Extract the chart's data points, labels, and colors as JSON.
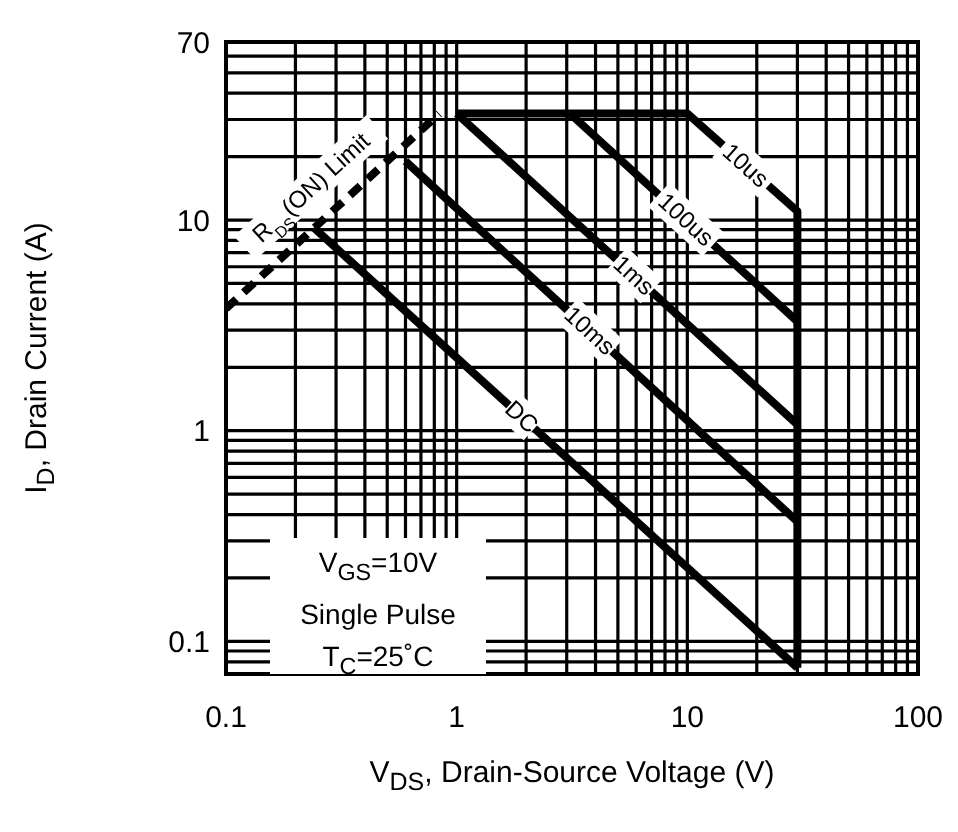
{
  "chart_data": {
    "type": "line",
    "xlabel": "V$_{DS}$, Drain-Source Voltage (V)",
    "ylabel": "I$_{D}$, Drain Current (A)",
    "log": "xy",
    "grid": true,
    "marker": "none",
    "xlim": [
      0.1,
      100
    ],
    "ylim": [
      0.07,
      70
    ],
    "xticks": [
      0.1,
      {
        "value": 0.2,
        "label": null
      },
      {
        "value": 0.3,
        "label": null
      },
      {
        "value": 0.4,
        "label": null
      },
      {
        "value": 0.5,
        "label": null
      },
      {
        "value": 0.6,
        "label": null
      },
      {
        "value": 0.7,
        "label": null
      },
      {
        "value": 0.8,
        "label": null
      },
      {
        "value": 0.9,
        "label": null
      },
      1,
      {
        "value": 2,
        "label": null
      },
      {
        "value": 3,
        "label": null
      },
      {
        "value": 4,
        "label": null
      },
      {
        "value": 5,
        "label": null
      },
      {
        "value": 6,
        "label": null
      },
      {
        "value": 7,
        "label": null
      },
      {
        "value": 8,
        "label": null
      },
      {
        "value": 9,
        "label": null
      },
      10,
      {
        "value": 20,
        "label": null
      },
      {
        "value": 30,
        "label": null
      },
      {
        "value": 40,
        "label": null
      },
      {
        "value": 50,
        "label": null
      },
      {
        "value": 60,
        "label": null
      },
      {
        "value": 70,
        "label": null
      },
      {
        "value": 80,
        "label": null
      },
      {
        "value": 90,
        "label": null
      },
      100
    ],
    "yticks": [
      {
        "value": 0.08,
        "label": null
      },
      {
        "value": 0.09,
        "label": null
      },
      0.1,
      {
        "value": 0.2,
        "label": null
      },
      {
        "value": 0.3,
        "label": null
      },
      {
        "value": 0.4,
        "label": null
      },
      {
        "value": 0.5,
        "label": null
      },
      {
        "value": 0.6,
        "label": null
      },
      {
        "value": 0.7,
        "label": null
      },
      {
        "value": 0.8,
        "label": null
      },
      {
        "value": 0.9,
        "label": null
      },
      1,
      {
        "value": 2,
        "label": null
      },
      {
        "value": 3,
        "label": null
      },
      {
        "value": 4,
        "label": null
      },
      {
        "value": 5,
        "label": null
      },
      {
        "value": 6,
        "label": null
      },
      {
        "value": 7,
        "label": null
      },
      {
        "value": 8,
        "label": null
      },
      {
        "value": 9,
        "label": null
      },
      10,
      {
        "value": 20,
        "label": null
      },
      {
        "value": 30,
        "label": null
      },
      {
        "value": 40,
        "label": null
      },
      {
        "value": 50,
        "label": null
      },
      {
        "value": 60,
        "label": null
      },
      70
    ],
    "series": [
      {
        "name": "R$_{DS}$(ON) Limit",
        "color": "#000000",
        "line_style": "dashed",
        "x": [
          0.1,
          0.84
        ],
        "values": [
          3.8,
          32
        ]
      },
      {
        "name": "10us",
        "color": "#000000",
        "line_style": "solid",
        "x": [
          1,
          10,
          30,
          30
        ],
        "values": [
          32,
          32,
          11,
          0.075
        ]
      },
      {
        "name": "100us",
        "color": "#000000",
        "line_style": "solid",
        "x": [
          3.1,
          30
        ],
        "values": [
          32,
          3.3
        ]
      },
      {
        "name": "1ms",
        "color": "#000000",
        "line_style": "solid",
        "x": [
          1,
          30
        ],
        "values": [
          32,
          1.07
        ]
      },
      {
        "name": "10ms",
        "color": "#000000",
        "line_style": "solid",
        "x": [
          0.6,
          30
        ],
        "values": [
          19,
          0.37
        ]
      },
      {
        "name": "DC",
        "color": "#000000",
        "line_style": "solid",
        "x": [
          0.24,
          30
        ],
        "values": [
          9.2,
          0.075
        ]
      }
    ],
    "annotations": [
      "V$_{GS}$=10V",
      "Single Pulse",
      "T$_{C}$=25˚C"
    ]
  }
}
